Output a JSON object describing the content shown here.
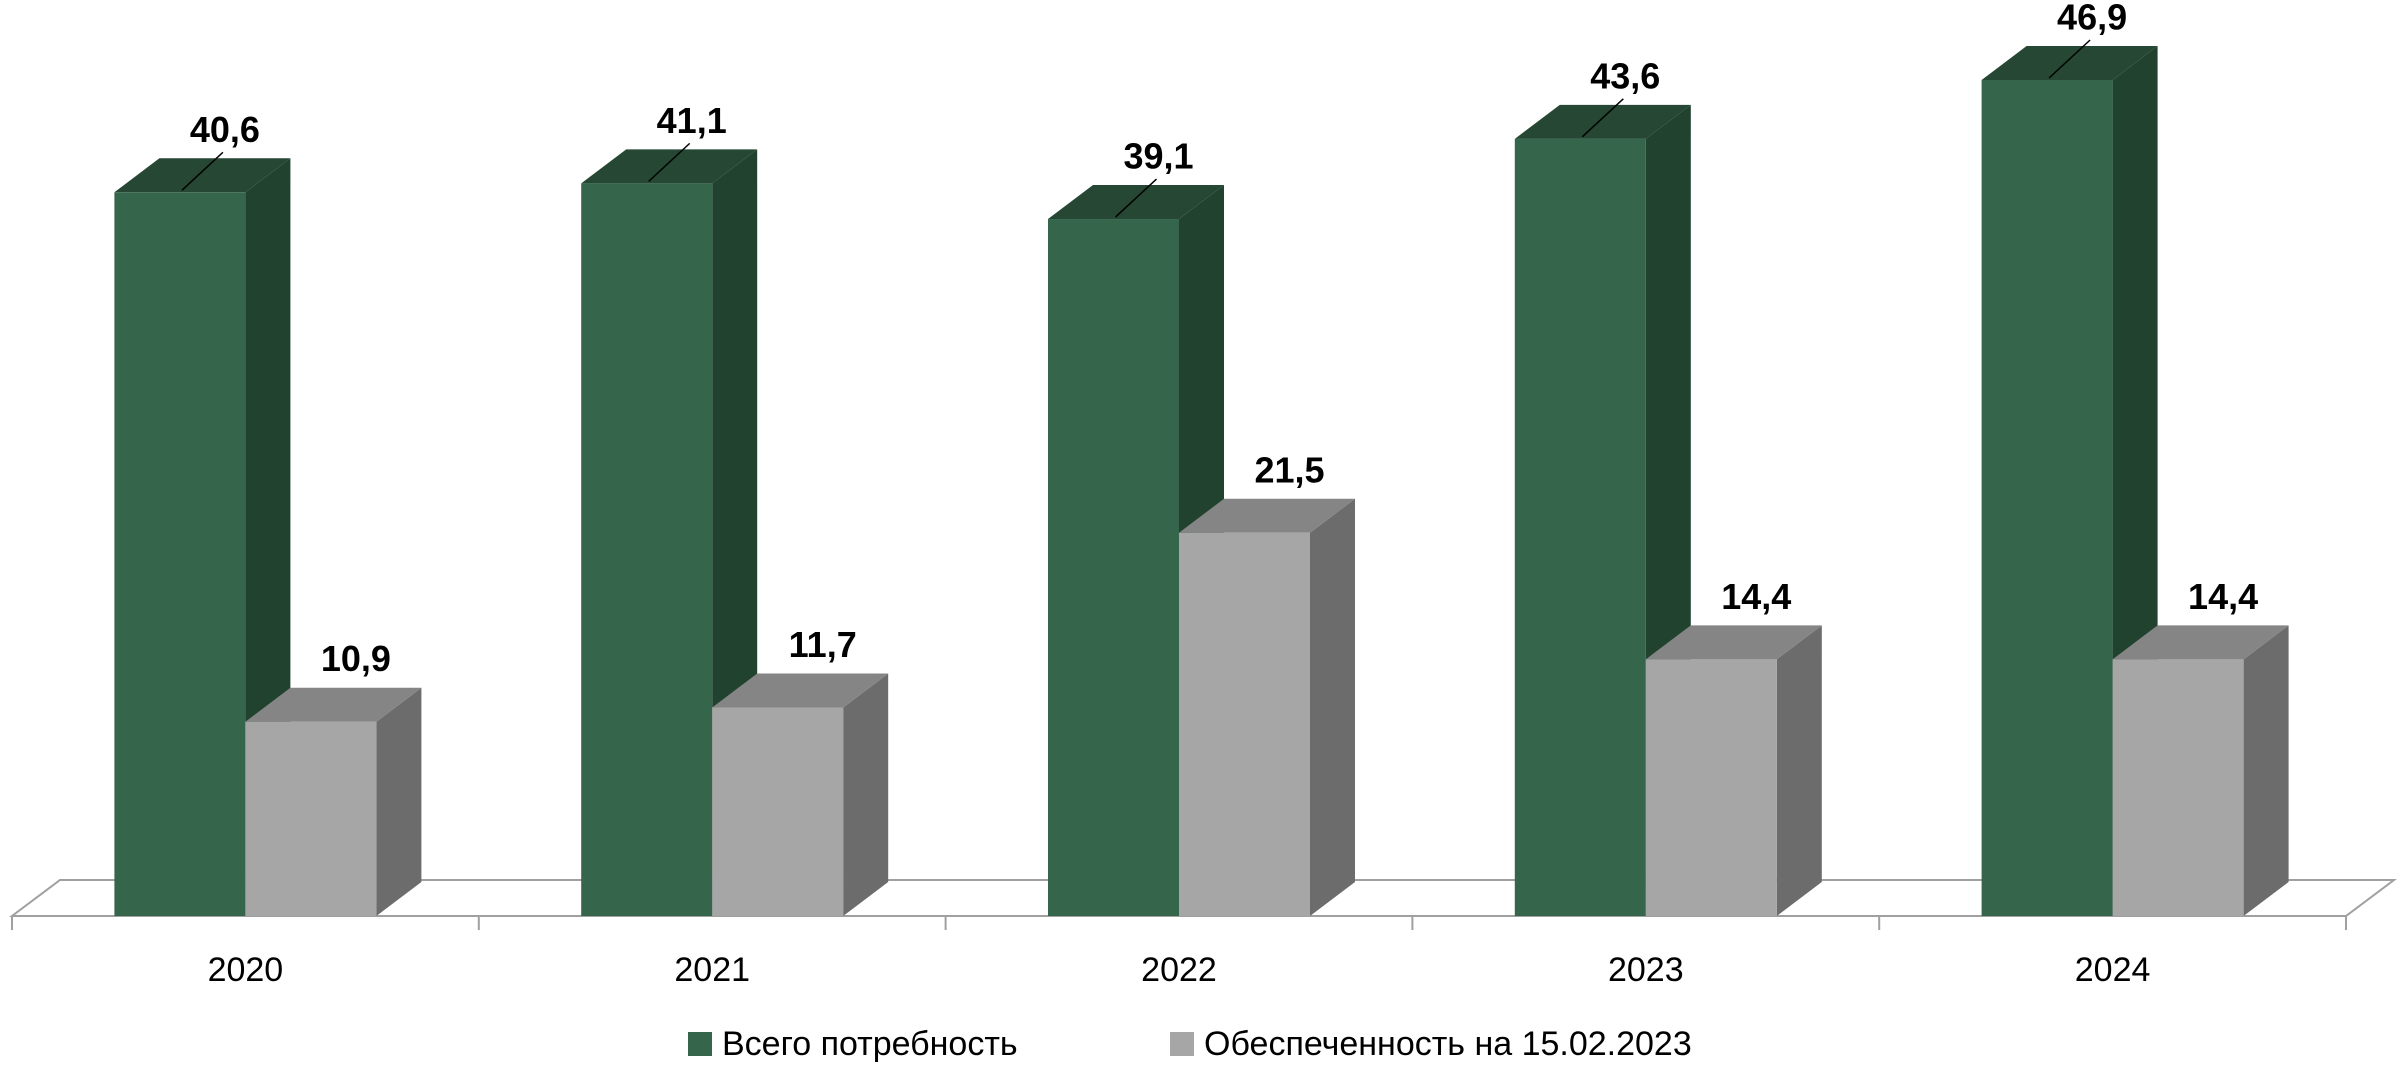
{
  "chart_data": {
    "type": "bar3d",
    "categories": [
      "2020",
      "2021",
      "2022",
      "2023",
      "2024"
    ],
    "series": [
      {
        "name": "Всего потребность",
        "color": "#35654a",
        "values": [
          40.6,
          41.1,
          39.1,
          43.6,
          46.9
        ],
        "value_labels": [
          "40,6",
          "41,1",
          "39,1",
          "43,6",
          "46,9"
        ]
      },
      {
        "name": "Обеспеченность на 15.02.2023",
        "color": "#a6a6a6",
        "values": [
          10.9,
          11.7,
          21.5,
          14.4,
          14.4
        ],
        "value_labels": [
          "10,9",
          "11,7",
          "21,5",
          "14,4",
          "14,4"
        ]
      }
    ],
    "legend": "bottom"
  }
}
